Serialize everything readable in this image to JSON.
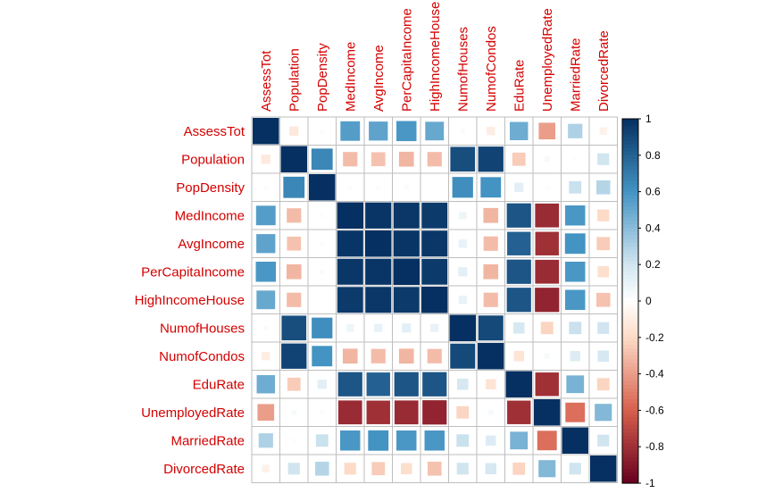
{
  "chart_data": {
    "type": "heatmap",
    "method": "square",
    "variables": [
      "AssessTot",
      "Population",
      "PopDensity",
      "MedIncome",
      "AvgIncome",
      "PerCapitaIncome",
      "HighIncomeHouse",
      "NumofHouses",
      "NumofCondos",
      "EduRate",
      "UnemployedRate",
      "MarriedRate",
      "DivorcedRate"
    ],
    "matrix": [
      [
        1.0,
        -0.12,
        0.02,
        0.55,
        0.52,
        0.58,
        0.5,
        0.03,
        -0.1,
        0.48,
        -0.4,
        0.3,
        -0.08
      ],
      [
        -0.12,
        1.0,
        0.65,
        -0.3,
        -0.28,
        -0.32,
        -0.3,
        0.88,
        0.92,
        -0.25,
        0.04,
        0.02,
        0.2
      ],
      [
        0.02,
        0.65,
        1.0,
        0.02,
        0.02,
        0.03,
        0.0,
        0.62,
        0.6,
        0.12,
        0.02,
        0.22,
        0.28
      ],
      [
        0.55,
        -0.3,
        0.02,
        1.0,
        0.98,
        0.97,
        0.96,
        0.08,
        -0.32,
        0.85,
        -0.82,
        0.58,
        -0.2
      ],
      [
        0.52,
        -0.28,
        0.02,
        0.98,
        1.0,
        0.98,
        0.97,
        0.1,
        -0.3,
        0.8,
        -0.8,
        0.6,
        -0.25
      ],
      [
        0.58,
        -0.32,
        0.03,
        0.97,
        0.98,
        1.0,
        0.96,
        0.12,
        -0.32,
        0.85,
        -0.82,
        0.58,
        -0.18
      ],
      [
        0.5,
        -0.3,
        0.0,
        0.96,
        0.97,
        0.96,
        1.0,
        0.1,
        -0.3,
        0.85,
        -0.85,
        0.58,
        -0.28
      ],
      [
        0.03,
        0.88,
        0.62,
        0.08,
        0.1,
        0.12,
        0.1,
        1.0,
        0.9,
        0.18,
        -0.22,
        0.22,
        0.2
      ],
      [
        -0.1,
        0.92,
        0.6,
        -0.32,
        -0.3,
        -0.32,
        -0.3,
        0.9,
        1.0,
        -0.15,
        0.04,
        0.15,
        0.18
      ],
      [
        0.48,
        -0.25,
        0.12,
        0.85,
        0.8,
        0.85,
        0.85,
        0.18,
        -0.15,
        1.0,
        -0.8,
        0.45,
        -0.22
      ],
      [
        -0.4,
        0.04,
        0.02,
        -0.82,
        -0.8,
        -0.82,
        -0.85,
        -0.22,
        0.04,
        -0.8,
        1.0,
        -0.55,
        0.42
      ],
      [
        0.3,
        0.02,
        0.22,
        0.58,
        0.6,
        0.58,
        0.58,
        0.22,
        0.15,
        0.45,
        -0.55,
        1.0,
        0.2
      ],
      [
        -0.08,
        0.2,
        0.28,
        -0.2,
        -0.25,
        -0.18,
        -0.28,
        0.2,
        0.18,
        -0.22,
        0.42,
        0.2,
        1.0
      ]
    ],
    "colorbar": {
      "range": [
        -1,
        1
      ],
      "ticks": [
        1,
        0.8,
        0.6,
        0.4,
        0.2,
        0,
        -0.2,
        -0.4,
        -0.6,
        -0.8,
        -1
      ],
      "tick_labels": [
        "1",
        "0.8",
        "0.6",
        "0.4",
        "0.2",
        "0",
        "-0.2",
        "-0.4",
        "-0.6",
        "-0.8",
        "-1"
      ],
      "position": "right"
    },
    "colors": {
      "negative_end": "#67001F",
      "neg_mid": "#D6604D",
      "neg_light": "#FDDBC7",
      "zero": "#FFFFFF",
      "pos_light": "#D1E5F0",
      "pos_mid": "#4393C3",
      "positive_end": "#053061",
      "label_color": "#D40000",
      "grid_color": "#BEBEBE"
    },
    "title": "",
    "xlabel": "",
    "ylabel": ""
  }
}
